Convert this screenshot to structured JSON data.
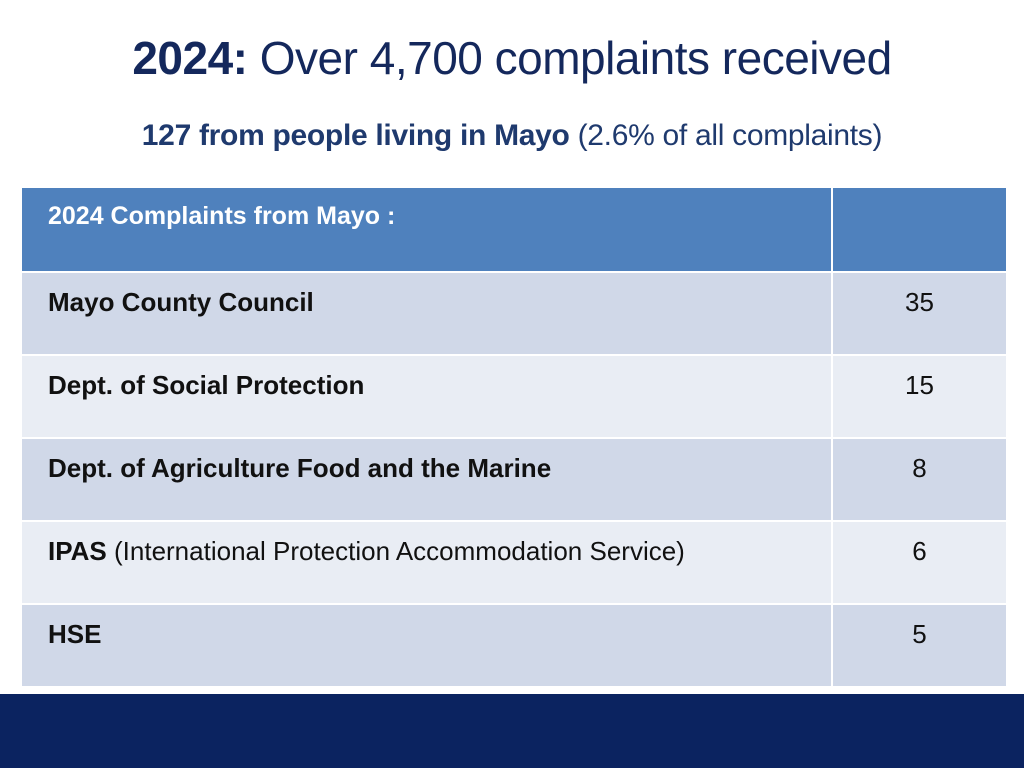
{
  "title": {
    "bold": "2024:",
    "rest": "Over 4,700 complaints received"
  },
  "subtitle": {
    "bold": "127 from people living in Mayo",
    "rest": "(2.6% of all complaints)"
  },
  "table": {
    "header": {
      "label": "2024 Complaints from Mayo :",
      "value": ""
    },
    "rows": [
      {
        "name_bold": "Mayo County Council",
        "name_rest": "",
        "count": "35"
      },
      {
        "name_bold": "Dept. of Social Protection",
        "name_rest": "",
        "count": "15"
      },
      {
        "name_bold": "Dept. of Agriculture Food and the Marine",
        "name_rest": "",
        "count": "8"
      },
      {
        "name_bold": "IPAS",
        "name_rest": "(International Protection Accommodation Service)",
        "count": "6"
      },
      {
        "name_bold": "HSE",
        "name_rest": "",
        "count": "5"
      }
    ]
  },
  "colors": {
    "title": "#14285c",
    "header_bg": "#4f81bd",
    "row_dark": "#d0d8e8",
    "row_light": "#e9edf4",
    "footer": "#0b2360"
  }
}
